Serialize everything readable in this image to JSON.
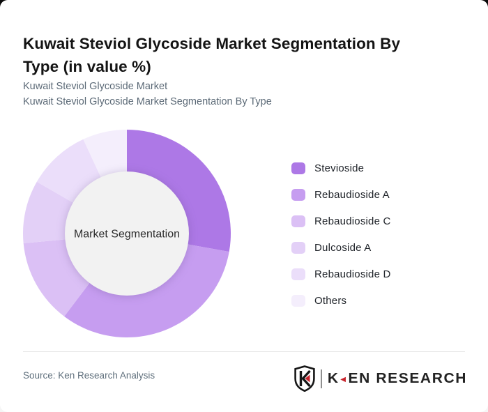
{
  "page": {
    "title": "Kuwait Steviol Glycoside Market Segmentation By Type (in value %)",
    "subtitle1": "Kuwait Steviol Glycoside Market",
    "subtitle2": "Kuwait Steviol Glycoside Market Segmentation By Type",
    "source": "Source: Ken Research Analysis"
  },
  "footer_logo": {
    "shield_monogram": "K",
    "wordmark_k": "K",
    "wordmark_rest": "EN RESEARCH",
    "accent_color": "#c8232c"
  },
  "chart_data": {
    "type": "pie",
    "donut": true,
    "title": "Kuwait Steviol Glycoside Market Segmentation By Type (in value %)",
    "center_label": "Market Segmentation",
    "categories": [
      "Stevioside",
      "Rebaudioside A",
      "Rebaudioside C",
      "Dulcoside A",
      "Rebaudioside D",
      "Others"
    ],
    "values": [
      27.8,
      32.5,
      13.2,
      9.8,
      9.8,
      6.9
    ],
    "unit": "percent of value",
    "colors": [
      "#ad78e6",
      "#c69df0",
      "#dbc0f5",
      "#e3d0f7",
      "#ebdefa",
      "#f4eefc"
    ],
    "start_angle_deg": 0,
    "direction": "clockwise",
    "legend_position": "right",
    "inner_radius_ratio": 0.6,
    "center_fill": "#f2f2f2"
  }
}
